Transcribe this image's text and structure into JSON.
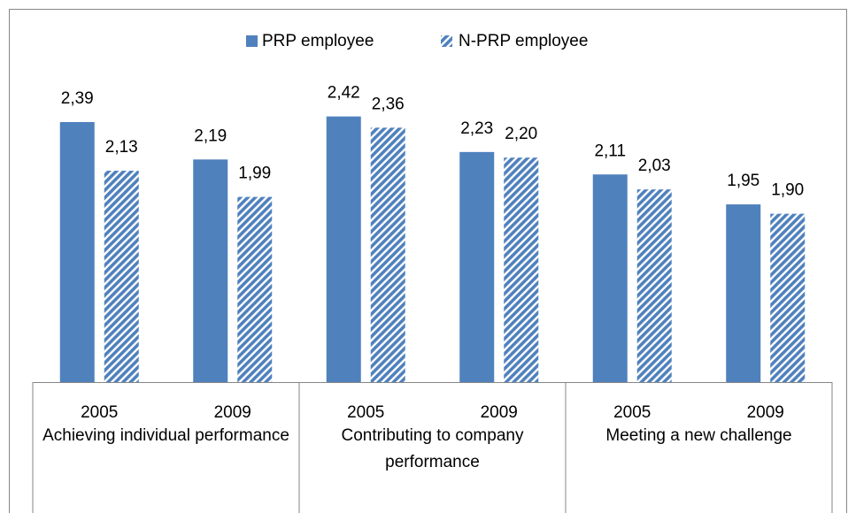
{
  "chart_data": {
    "type": "bar",
    "groups": [
      {
        "label": "Achieving individual performance",
        "categories": [
          "2005",
          "2009"
        ]
      },
      {
        "label": "Contributing to company performance",
        "categories": [
          "2005",
          "2009"
        ]
      },
      {
        "label": "Meeting a new challenge",
        "categories": [
          "2005",
          "2009"
        ]
      }
    ],
    "series": [
      {
        "name": "PRP employee",
        "color": "#4f81bd",
        "pattern": "solid",
        "values": [
          2.39,
          2.19,
          2.42,
          2.23,
          2.11,
          1.95
        ],
        "value_labels": [
          "2,39",
          "2,19",
          "2,42",
          "2,23",
          "2,11",
          "1,95"
        ]
      },
      {
        "name": "N-PRP employee",
        "color": "#4f81bd",
        "pattern": "hatch",
        "values": [
          2.13,
          1.99,
          2.36,
          2.2,
          2.03,
          1.9
        ],
        "value_labels": [
          "2,13",
          "1,99",
          "2,36",
          "2,20",
          "2,03",
          "1,90"
        ]
      }
    ],
    "ylim": [
      1,
      2.6
    ],
    "legend": "top"
  }
}
